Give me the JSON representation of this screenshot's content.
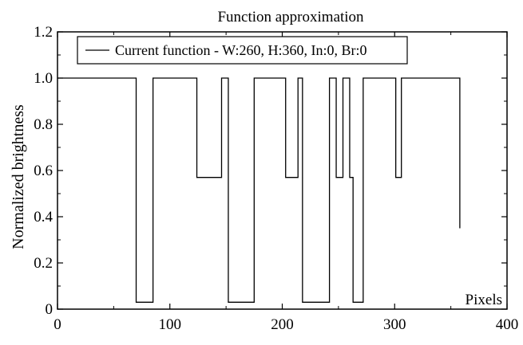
{
  "chart_data": {
    "type": "line",
    "title": "Function approximation",
    "xlabel": "Pixels",
    "ylabel": "Normalized brightness",
    "xlim": [
      0,
      400
    ],
    "ylim": [
      0,
      1.2
    ],
    "x_ticks": [
      0,
      100,
      200,
      300,
      400
    ],
    "x_tick_labels": [
      "0",
      "100",
      "200",
      "300",
      "400"
    ],
    "y_ticks": [
      0,
      0.2,
      0.4,
      0.6,
      0.8,
      1.0,
      1.2
    ],
    "y_tick_labels": [
      "0",
      "0.2",
      "0.4",
      "0.6",
      "0.8",
      "1.0",
      "1.2"
    ],
    "grid": false,
    "legend_position": "top-left",
    "series": [
      {
        "name": "Current function - W:260, H:360, In:0, Br:0",
        "color": "#000000",
        "step": true,
        "x": [
          0,
          70,
          85,
          124,
          146,
          152,
          175,
          203,
          214,
          218,
          242,
          248,
          254,
          260,
          263,
          272,
          301,
          306,
          358
        ],
        "values": [
          1.0,
          0.03,
          1.0,
          0.57,
          1.0,
          0.03,
          1.0,
          0.57,
          1.0,
          0.03,
          1.0,
          0.57,
          1.0,
          0.57,
          0.03,
          1.0,
          0.57,
          1.0,
          0.35
        ]
      }
    ]
  }
}
